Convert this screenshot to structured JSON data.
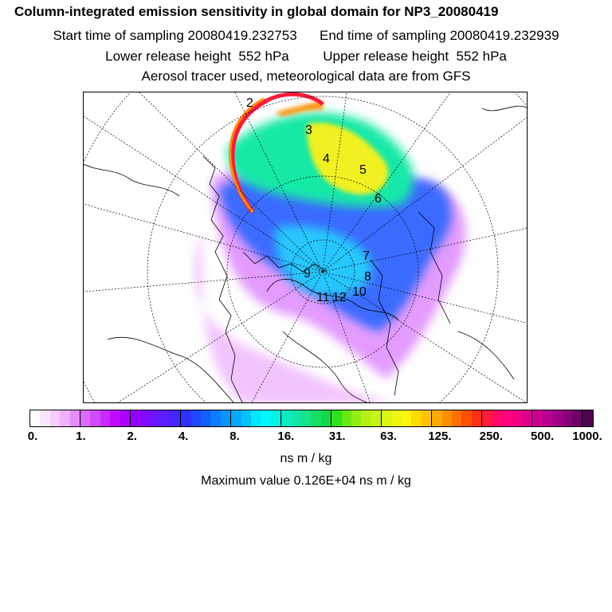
{
  "titles": {
    "main": "Column-integrated emission sensitivity in global domain for NP3_20080419",
    "sampling": "Start time of sampling 20080419.232753      End time of sampling 20080419.232939",
    "release": "Lower release height  552 hPa         Upper release height  552 hPa",
    "tracer": "Aerosol tracer used, meteorological data are from GFS"
  },
  "map": {
    "projection": "polar stereographic (north pole)",
    "trajectory_labels": [
      "2",
      "3",
      "4",
      "5",
      "6",
      "7",
      "8",
      "9",
      "10",
      "11",
      "12"
    ],
    "colors": {
      "low": "#e39bff",
      "mid_low": "#3a6bff",
      "mid": "#13e8a8",
      "mid_high": "#f0f020",
      "high": "#ff1a3a"
    }
  },
  "colorbar": {
    "tick_labels": [
      "0.",
      "1.",
      "2.",
      "4.",
      "8.",
      "16.",
      "31.",
      "63.",
      "125.",
      "250.",
      "500.",
      "1000."
    ],
    "colors": [
      "#ffffff",
      "#fbe6ff",
      "#f5ccff",
      "#eeb0ff",
      "#e58dff",
      "#dc6cff",
      "#d24cff",
      "#c82bff",
      "#bf0bff",
      "#ab00ff",
      "#9500ff",
      "#7f0aff",
      "#6b14ff",
      "#5a1eff",
      "#4426ff",
      "#2f32ff",
      "#1f48ff",
      "#125fff",
      "#0b7cff",
      "#0a95ff",
      "#0aa8ff",
      "#05c2ff",
      "#00e6ff",
      "#00f7ff",
      "#05f2e2",
      "#0ceac3",
      "#10e6a6",
      "#18e38a",
      "#18de66",
      "#12d945",
      "#2ee21f",
      "#6ae710",
      "#93ec10",
      "#b5f010",
      "#c6f314",
      "#d8f512",
      "#ebf712",
      "#fbf60a",
      "#ffdb00",
      "#ffc300",
      "#ffaa00",
      "#ff8e00",
      "#ff7000",
      "#ff5000",
      "#ff3015",
      "#ff1a3a",
      "#ff0a6a",
      "#ff007f",
      "#f2007f",
      "#de008a",
      "#cc0090",
      "#b80090",
      "#a00088",
      "#880078",
      "#6e0068",
      "#50004e"
    ],
    "units": "ns m / kg",
    "max_text": "Maximum value  0.126E+04 ns m / kg"
  }
}
